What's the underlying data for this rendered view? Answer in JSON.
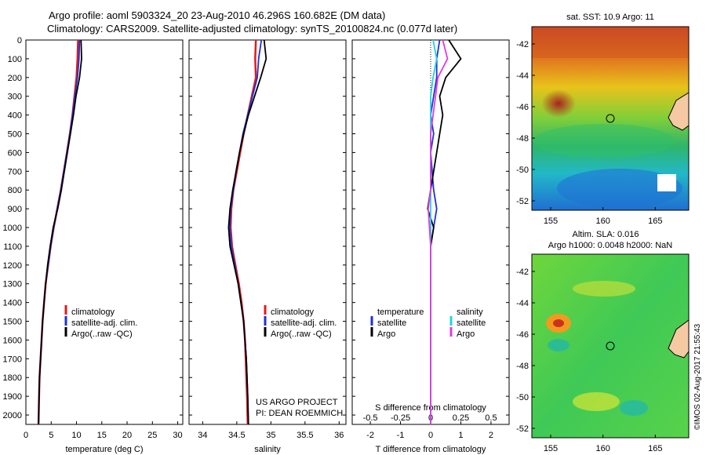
{
  "title": {
    "line1": "Argo profile: aoml 5903324_20 23-Aug-2010 46.296S 160.682E (DM data)",
    "line2": "Climatology: CARS2009. Satellite-adjusted climatology: synTS_20100824.nc (0.077d later)"
  },
  "colors": {
    "climatology": "#e31a1c",
    "satellite": "#1f2fd6",
    "argo": "#000000",
    "salinity_satellite": "#22d3e6",
    "salinity_argo": "#e03be0"
  },
  "depth_ticks": [
    "0",
    "100",
    "200",
    "300",
    "400",
    "500",
    "600",
    "700",
    "800",
    "900",
    "1000",
    "1100",
    "1200",
    "1300",
    "1400",
    "1500",
    "1600",
    "1700",
    "1800",
    "1900",
    "2000"
  ],
  "legend": {
    "climatology": "climatology",
    "satellite_adj": "satellite-adj. clim.",
    "argo": "Argo(..raw -QC)",
    "temperature": "temperature",
    "salinity": "salinity",
    "satellite": "satellite",
    "argo_short": "Argo"
  },
  "project": {
    "line1": "US ARGO PROJECT",
    "line2": "PI: DEAN ROEMMICH"
  },
  "map_sst": {
    "title": "sat. SST: 10.9 Argo: 11",
    "lat_ticks": [
      "-42",
      "-44",
      "-46",
      "-48",
      "-50",
      "-52"
    ],
    "lon_ticks": [
      "155",
      "160",
      "165"
    ]
  },
  "map_sla": {
    "title1": "Altim. SLA: 0.016",
    "title2": "Argo h1000: 0.0048 h2000: NaN",
    "lat_ticks": [
      "-42",
      "-44",
      "-46",
      "-48",
      "-50",
      "-52"
    ],
    "lon_ticks": [
      "155",
      "160",
      "165"
    ]
  },
  "footer": "©IMOS 02-Aug-2017 21:55:43",
  "chart_data": [
    {
      "type": "line",
      "xlabel": "temperature (deg C)",
      "ylabel": "",
      "xlim": [
        0,
        31
      ],
      "ylim": [
        2050,
        0
      ],
      "xticks": [
        "0",
        "5",
        "10",
        "15",
        "20",
        "25",
        "30"
      ],
      "series": [
        {
          "name": "climatology",
          "x": [
            10.3,
            10.2,
            10.0,
            9.6,
            9.2,
            8.7,
            8.1,
            7.5,
            6.9,
            6.2,
            5.5,
            4.9,
            4.4,
            3.9,
            3.6,
            3.3,
            3.1,
            2.9,
            2.7,
            2.6,
            2.5
          ],
          "y": [
            0,
            100,
            200,
            300,
            400,
            500,
            600,
            700,
            800,
            900,
            1000,
            1100,
            1200,
            1300,
            1400,
            1500,
            1600,
            1700,
            1800,
            1900,
            2050
          ]
        },
        {
          "name": "satellite-adj. clim.",
          "x": [
            10.6,
            10.5,
            10.2,
            9.7,
            9.2,
            8.7,
            8.1,
            7.5,
            6.9,
            6.2,
            5.5,
            4.9,
            4.4,
            3.9,
            3.6,
            3.3,
            3.1,
            2.9,
            2.7,
            2.6,
            2.5
          ],
          "y": [
            0,
            100,
            200,
            300,
            400,
            500,
            600,
            700,
            800,
            900,
            1000,
            1100,
            1200,
            1300,
            1400,
            1500,
            1600,
            1700,
            1800,
            1900,
            2050
          ]
        },
        {
          "name": "Argo(..raw -QC)",
          "x": [
            10.9,
            11.0,
            10.6,
            9.9,
            9.4,
            8.8,
            8.2,
            7.6,
            7.0,
            6.3,
            5.4,
            4.8,
            4.3,
            3.9,
            3.6,
            3.3,
            3.1,
            2.9,
            2.7,
            2.6,
            2.5
          ],
          "y": [
            0,
            100,
            200,
            300,
            400,
            500,
            600,
            700,
            800,
            900,
            1000,
            1100,
            1200,
            1300,
            1400,
            1500,
            1600,
            1700,
            1800,
            1900,
            2050
          ]
        }
      ]
    },
    {
      "type": "line",
      "xlabel": "salinity",
      "xlim": [
        33.8,
        36.1
      ],
      "ylim": [
        2050,
        0
      ],
      "xticks": [
        "34",
        "34.5",
        "35",
        "35.5",
        "36"
      ],
      "series": [
        {
          "name": "climatology",
          "x": [
            34.78,
            34.77,
            34.78,
            34.72,
            34.66,
            34.6,
            34.55,
            34.5,
            34.45,
            34.42,
            34.41,
            34.43,
            34.48,
            34.53,
            34.57,
            34.6,
            34.62,
            34.63,
            34.64,
            34.65,
            34.66
          ],
          "y": [
            0,
            100,
            200,
            300,
            400,
            500,
            600,
            700,
            800,
            900,
            1000,
            1100,
            1200,
            1300,
            1400,
            1500,
            1600,
            1700,
            1800,
            1900,
            2050
          ]
        },
        {
          "name": "satellite-adj. clim.",
          "x": [
            34.86,
            34.82,
            34.8,
            34.73,
            34.66,
            34.59,
            34.54,
            34.49,
            34.45,
            34.41,
            34.4,
            34.42,
            34.47,
            34.52,
            34.56,
            34.6,
            34.62,
            34.64,
            34.65,
            34.66,
            34.67
          ],
          "y": [
            0,
            100,
            200,
            300,
            400,
            500,
            600,
            700,
            800,
            900,
            1000,
            1100,
            1200,
            1300,
            1400,
            1500,
            1600,
            1700,
            1800,
            1900,
            2050
          ]
        },
        {
          "name": "Argo(..raw -QC)",
          "x": [
            34.9,
            34.93,
            34.85,
            34.76,
            34.67,
            34.6,
            34.54,
            34.49,
            34.44,
            34.4,
            34.38,
            34.4,
            34.46,
            34.52,
            34.56,
            34.6,
            34.62,
            34.64,
            34.65,
            34.66,
            34.67
          ],
          "y": [
            0,
            100,
            200,
            300,
            400,
            500,
            600,
            700,
            800,
            900,
            1000,
            1100,
            1200,
            1300,
            1400,
            1500,
            1600,
            1700,
            1800,
            1900,
            2050
          ]
        }
      ]
    },
    {
      "type": "line",
      "xlabel": "T difference from climatology",
      "x2label": "S difference from climatology",
      "xlim": [
        -2.6,
        2.6
      ],
      "ylim": [
        2050,
        0
      ],
      "xticks": [
        "-2",
        "-1",
        "0",
        "1",
        "2"
      ],
      "x2ticks": [
        "-0.5",
        "-0.25",
        "0",
        "0.25",
        "0.5"
      ],
      "series": [
        {
          "name": "temperature satellite",
          "x": [
            0.3,
            0.2,
            0.2,
            0.1,
            0.0,
            0.1,
            0.0,
            0.05,
            0.1,
            0.2,
            0.1,
            0.0,
            0.0,
            0.0,
            0.0,
            0.0,
            0.0,
            0.0,
            0.0,
            0.0,
            0.0
          ],
          "y": [
            0,
            100,
            200,
            300,
            400,
            500,
            600,
            700,
            800,
            900,
            1000,
            1100,
            1200,
            1300,
            1400,
            1500,
            1600,
            1700,
            1800,
            1900,
            2050
          ]
        },
        {
          "name": "temperature Argo",
          "x": [
            0.6,
            1.0,
            0.5,
            0.3,
            0.4,
            0.3,
            0.2,
            0.1,
            0.0,
            -0.1,
            0.1,
            0.0,
            0.0,
            0.0,
            0.0,
            0.0,
            0.0,
            0.0,
            0.0,
            0.0,
            0.0
          ],
          "y": [
            0,
            100,
            200,
            300,
            400,
            500,
            600,
            700,
            800,
            900,
            1000,
            1100,
            1200,
            1300,
            1400,
            1500,
            1600,
            1700,
            1800,
            1900,
            2050
          ]
        },
        {
          "name": "salinity satellite",
          "x": [
            0.02,
            0.05,
            0.02,
            0.0,
            0.0,
            0.0,
            0.0,
            0.0,
            0.0,
            0.0,
            0.0,
            0.0,
            0.0,
            0.0,
            0.0,
            0.0,
            0.0,
            0.0,
            0.0,
            0.0,
            0.0
          ],
          "y": [
            0,
            100,
            200,
            300,
            400,
            500,
            600,
            700,
            800,
            900,
            1000,
            1100,
            1200,
            1300,
            1400,
            1500,
            1600,
            1700,
            1800,
            1900,
            2050
          ]
        },
        {
          "name": "salinity Argo",
          "x": [
            0.1,
            0.14,
            0.06,
            0.04,
            0.02,
            0.0,
            0.0,
            0.0,
            0.0,
            -0.02,
            -0.01,
            0.0,
            0.0,
            0.0,
            0.0,
            0.0,
            0.0,
            0.0,
            0.0,
            0.0,
            0.0
          ],
          "y": [
            0,
            100,
            200,
            300,
            400,
            500,
            600,
            700,
            800,
            900,
            1000,
            1100,
            1200,
            1300,
            1400,
            1500,
            1600,
            1700,
            1800,
            1900,
            2050
          ]
        }
      ]
    }
  ]
}
